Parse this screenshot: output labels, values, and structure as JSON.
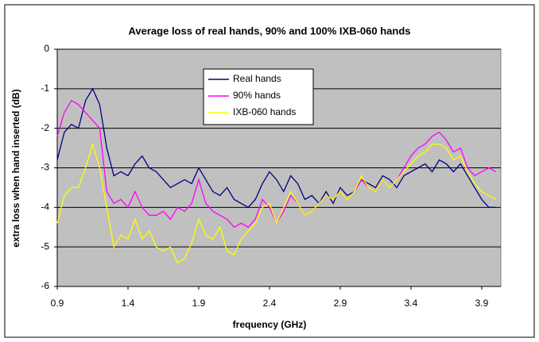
{
  "chart_data": {
    "type": "line",
    "title": "Average loss of real hands, 90% and 100% IXB-060 hands",
    "x_label": "frequency (GHz)",
    "y_label": "extra loss when hand inserted (dB)",
    "x": [
      0.9,
      0.95,
      1.0,
      1.05,
      1.1,
      1.15,
      1.2,
      1.25,
      1.3,
      1.35,
      1.4,
      1.45,
      1.5,
      1.55,
      1.6,
      1.65,
      1.7,
      1.75,
      1.8,
      1.85,
      1.9,
      1.95,
      2.0,
      2.05,
      2.1,
      2.15,
      2.2,
      2.25,
      2.3,
      2.35,
      2.4,
      2.45,
      2.5,
      2.55,
      2.6,
      2.65,
      2.7,
      2.75,
      2.8,
      2.85,
      2.9,
      2.95,
      3.0,
      3.05,
      3.1,
      3.15,
      3.2,
      3.25,
      3.3,
      3.35,
      3.4,
      3.45,
      3.5,
      3.55,
      3.6,
      3.65,
      3.7,
      3.75,
      3.8,
      3.85,
      3.9,
      3.95,
      4.0
    ],
    "series": [
      {
        "name": "Real hands",
        "color": "#000080",
        "values": [
          -2.8,
          -2.1,
          -1.9,
          -2.0,
          -1.3,
          -1.0,
          -1.4,
          -2.5,
          -3.2,
          -3.1,
          -3.2,
          -2.9,
          -2.7,
          -3.0,
          -3.1,
          -3.3,
          -3.5,
          -3.4,
          -3.3,
          -3.4,
          -3.0,
          -3.3,
          -3.6,
          -3.7,
          -3.5,
          -3.8,
          -3.9,
          -4.0,
          -3.8,
          -3.4,
          -3.1,
          -3.3,
          -3.6,
          -3.2,
          -3.4,
          -3.8,
          -3.7,
          -3.9,
          -3.6,
          -3.9,
          -3.5,
          -3.7,
          -3.6,
          -3.3,
          -3.4,
          -3.5,
          -3.2,
          -3.3,
          -3.5,
          -3.2,
          -3.1,
          -3.0,
          -2.9,
          -3.1,
          -2.8,
          -2.9,
          -3.1,
          -2.9,
          -3.2,
          -3.5,
          -3.8,
          -4.0,
          -4.0
        ]
      },
      {
        "name": "90% hands",
        "color": "#ff00ff",
        "values": [
          -2.2,
          -1.6,
          -1.3,
          -1.4,
          -1.6,
          -1.8,
          -2.0,
          -3.6,
          -3.9,
          -3.8,
          -4.0,
          -3.6,
          -4.0,
          -4.2,
          -4.2,
          -4.1,
          -4.3,
          -4.0,
          -4.1,
          -3.9,
          -3.3,
          -3.9,
          -4.1,
          -4.2,
          -4.3,
          -4.5,
          -4.4,
          -4.5,
          -4.3,
          -3.8,
          -4.0,
          -4.4,
          -4.1,
          -3.7,
          -3.9,
          -4.2,
          -4.1,
          -3.9,
          -3.7,
          -3.8,
          -3.6,
          -3.8,
          -3.6,
          -3.3,
          -3.5,
          -3.6,
          -3.3,
          -3.5,
          -3.3,
          -3.0,
          -2.7,
          -2.5,
          -2.4,
          -2.2,
          -2.1,
          -2.3,
          -2.6,
          -2.5,
          -3.0,
          -3.2,
          -3.1,
          -3.0,
          -3.1
        ]
      },
      {
        "name": "IXB-060 hands",
        "color": "#ffff00",
        "values": [
          -4.4,
          -3.7,
          -3.5,
          -3.5,
          -3.0,
          -2.4,
          -3.0,
          -4.0,
          -5.0,
          -4.7,
          -4.8,
          -4.3,
          -4.8,
          -4.6,
          -5.0,
          -5.1,
          -5.0,
          -5.4,
          -5.3,
          -4.9,
          -4.3,
          -4.7,
          -4.8,
          -4.5,
          -5.1,
          -5.2,
          -4.8,
          -4.6,
          -4.4,
          -4.0,
          -3.9,
          -4.4,
          -4.0,
          -3.6,
          -3.9,
          -4.2,
          -4.1,
          -3.9,
          -3.7,
          -3.8,
          -3.6,
          -3.8,
          -3.6,
          -3.2,
          -3.5,
          -3.6,
          -3.3,
          -3.5,
          -3.3,
          -3.1,
          -2.9,
          -2.7,
          -2.6,
          -2.4,
          -2.4,
          -2.5,
          -2.8,
          -2.7,
          -3.1,
          -3.4,
          -3.6,
          -3.7,
          -3.8
        ]
      }
    ],
    "xlim": [
      0.9,
      4.035
    ],
    "xticks": [
      0.9,
      1.4,
      1.9,
      2.4,
      2.9,
      3.4,
      3.9
    ],
    "ylim": [
      -6,
      0
    ],
    "yticks": [
      -6,
      -5,
      -4,
      -3,
      -2,
      -1,
      0
    ],
    "grid": true
  }
}
